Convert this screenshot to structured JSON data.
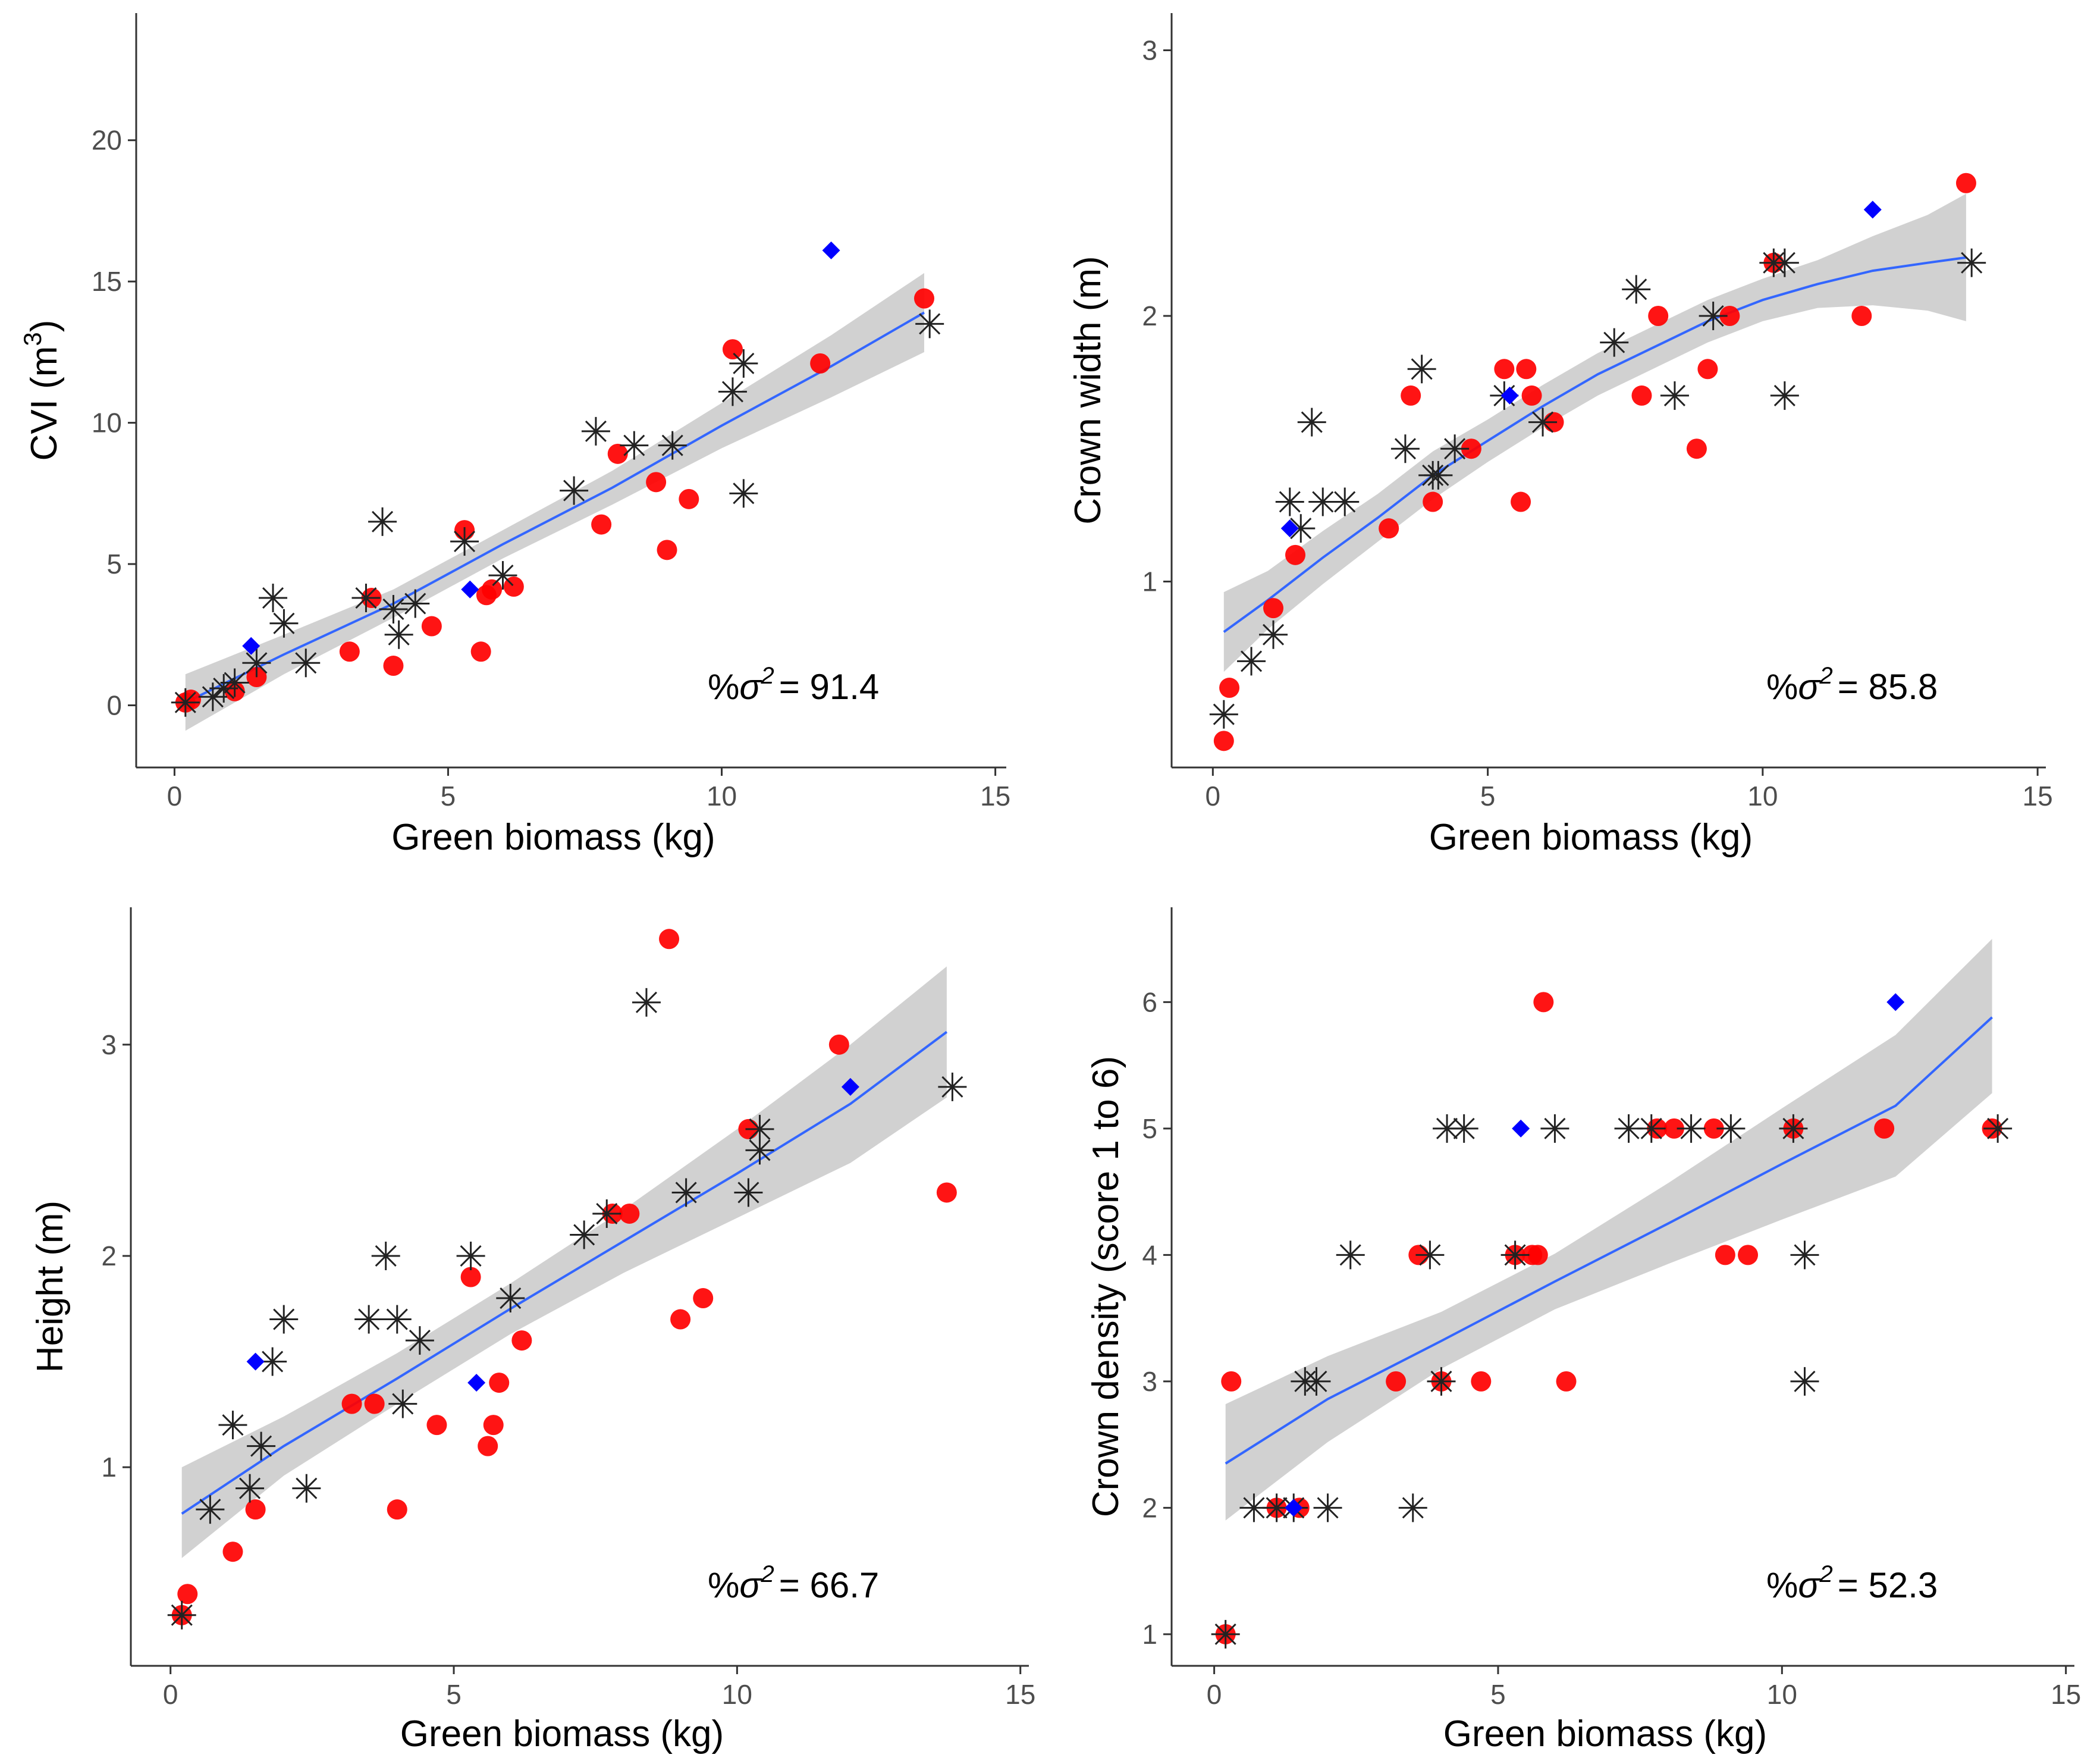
{
  "colors": {
    "circle": "#ff0000",
    "star": "#222222",
    "diamond": "#0000ff",
    "fit": "#3366ff",
    "band": "#bebebe"
  },
  "chart_data": [
    {
      "type": "scatter",
      "panel": "top-left",
      "xlabel": "Green biomass (kg)",
      "ylabel_text": "CVI (m",
      "ylabel_sup": "3",
      "ylabel_close": ")",
      "xlim": [
        -0.7,
        15.2
      ],
      "ylim": [
        -2.2,
        24.5
      ],
      "xticks": [
        0,
        5,
        10,
        15
      ],
      "yticks": [
        0,
        5,
        10,
        15,
        20
      ],
      "annotation": {
        "prefix": "%",
        "symbol": "σ",
        "sup": "2",
        "value": "= 91.4"
      },
      "fit": {
        "x": [
          0.2,
          2,
          4,
          6,
          8,
          10,
          12,
          13.7
        ],
        "y": [
          0.1,
          1.8,
          3.6,
          5.7,
          7.7,
          9.9,
          12.0,
          13.9
        ]
      },
      "band": {
        "x": [
          0.2,
          2,
          4,
          6,
          8,
          10,
          12,
          13.7
        ],
        "lower": [
          -0.9,
          1.1,
          3.1,
          5.2,
          7.1,
          9.1,
          10.9,
          12.5
        ],
        "upper": [
          1.1,
          2.5,
          4.1,
          6.2,
          8.3,
          10.7,
          13.1,
          15.3
        ]
      },
      "series": [
        {
          "name": "circle",
          "points": [
            [
              0.2,
              0.1
            ],
            [
              0.3,
              0.2
            ],
            [
              1.1,
              0.5
            ],
            [
              1.5,
              1.0
            ],
            [
              3.2,
              1.9
            ],
            [
              3.6,
              3.8
            ],
            [
              4.0,
              1.4
            ],
            [
              4.7,
              2.8
            ],
            [
              5.3,
              6.2
            ],
            [
              5.6,
              1.9
            ],
            [
              5.7,
              3.9
            ],
            [
              5.8,
              4.1
            ],
            [
              6.2,
              4.2
            ],
            [
              7.8,
              6.4
            ],
            [
              8.1,
              8.9
            ],
            [
              8.8,
              7.9
            ],
            [
              9.0,
              5.5
            ],
            [
              9.4,
              7.3
            ],
            [
              10.2,
              12.6
            ],
            [
              11.8,
              12.1
            ],
            [
              13.7,
              14.4
            ]
          ]
        },
        {
          "name": "star",
          "points": [
            [
              0.2,
              0.1
            ],
            [
              0.7,
              0.3
            ],
            [
              0.9,
              0.6
            ],
            [
              1.1,
              0.8
            ],
            [
              1.5,
              1.5
            ],
            [
              1.8,
              3.8
            ],
            [
              2.0,
              2.9
            ],
            [
              2.4,
              1.5
            ],
            [
              3.5,
              3.8
            ],
            [
              3.8,
              6.5
            ],
            [
              4.0,
              3.4
            ],
            [
              4.1,
              2.5
            ],
            [
              4.4,
              3.6
            ],
            [
              5.3,
              5.8
            ],
            [
              6.0,
              4.6
            ],
            [
              7.3,
              7.6
            ],
            [
              7.7,
              9.7
            ],
            [
              8.4,
              9.2
            ],
            [
              9.1,
              9.2
            ],
            [
              10.2,
              11.1
            ],
            [
              10.4,
              12.1
            ],
            [
              10.4,
              7.5
            ],
            [
              13.8,
              13.5
            ]
          ]
        },
        {
          "name": "diamond",
          "points": [
            [
              1.4,
              2.1
            ],
            [
              5.4,
              4.1
            ],
            [
              12.0,
              16.1
            ]
          ]
        }
      ]
    },
    {
      "type": "scatter",
      "panel": "top-right",
      "xlabel": "Green biomass (kg)",
      "ylabel": "Crown width (m)",
      "xlim": [
        -0.75,
        15.15
      ],
      "ylim": [
        0.3,
        3.14
      ],
      "xticks": [
        0,
        5,
        10,
        15
      ],
      "yticks": [
        1,
        2,
        3
      ],
      "annotation": {
        "prefix": "%",
        "symbol": "σ",
        "sup": "2",
        "value": "= 85.8"
      },
      "fit": {
        "x": [
          0.2,
          1,
          2,
          3,
          4,
          5,
          6,
          7,
          8,
          9,
          10,
          11,
          12,
          13,
          13.7
        ],
        "y": [
          0.81,
          0.93,
          1.09,
          1.24,
          1.4,
          1.53,
          1.66,
          1.78,
          1.88,
          1.98,
          2.06,
          2.12,
          2.17,
          2.2,
          2.22
        ]
      },
      "band": {
        "x": [
          0.2,
          1,
          2,
          3,
          4,
          5,
          6,
          7,
          8,
          9,
          10,
          11,
          12,
          13,
          13.7
        ],
        "lower": [
          0.66,
          0.82,
          0.99,
          1.15,
          1.31,
          1.45,
          1.58,
          1.7,
          1.8,
          1.9,
          1.98,
          2.03,
          2.04,
          2.02,
          1.98
        ],
        "upper": [
          0.96,
          1.04,
          1.19,
          1.33,
          1.49,
          1.61,
          1.74,
          1.86,
          1.96,
          2.06,
          2.14,
          2.21,
          2.3,
          2.38,
          2.46
        ]
      },
      "series": [
        {
          "name": "circle",
          "points": [
            [
              0.2,
              0.4
            ],
            [
              0.3,
              0.6
            ],
            [
              1.1,
              0.9
            ],
            [
              1.5,
              1.1
            ],
            [
              3.2,
              1.2
            ],
            [
              3.6,
              1.7
            ],
            [
              4.0,
              1.3
            ],
            [
              4.7,
              1.5
            ],
            [
              5.3,
              1.8
            ],
            [
              5.6,
              1.3
            ],
            [
              5.7,
              1.8
            ],
            [
              5.8,
              1.7
            ],
            [
              6.2,
              1.6
            ],
            [
              7.8,
              1.7
            ],
            [
              8.1,
              2.0
            ],
            [
              8.8,
              1.5
            ],
            [
              9.0,
              1.8
            ],
            [
              9.4,
              2.0
            ],
            [
              10.2,
              2.2
            ],
            [
              11.8,
              2.0
            ],
            [
              13.7,
              2.5
            ]
          ]
        },
        {
          "name": "star",
          "points": [
            [
              0.2,
              0.5
            ],
            [
              0.7,
              0.7
            ],
            [
              1.1,
              0.8
            ],
            [
              1.4,
              1.3
            ],
            [
              1.6,
              1.2
            ],
            [
              1.8,
              1.6
            ],
            [
              2.0,
              1.3
            ],
            [
              2.4,
              1.3
            ],
            [
              3.5,
              1.5
            ],
            [
              3.8,
              1.8
            ],
            [
              4.0,
              1.4
            ],
            [
              4.1,
              1.4
            ],
            [
              4.4,
              1.5
            ],
            [
              5.3,
              1.7
            ],
            [
              6.0,
              1.6
            ],
            [
              7.3,
              1.9
            ],
            [
              7.7,
              2.1
            ],
            [
              8.4,
              1.7
            ],
            [
              9.1,
              2.0
            ],
            [
              10.2,
              2.2
            ],
            [
              10.4,
              2.2
            ],
            [
              10.4,
              1.7
            ],
            [
              13.8,
              2.2
            ]
          ]
        },
        {
          "name": "diamond",
          "points": [
            [
              1.4,
              1.2
            ],
            [
              5.4,
              1.7
            ],
            [
              12.0,
              2.4
            ]
          ]
        }
      ]
    },
    {
      "type": "scatter",
      "panel": "bottom-left",
      "xlabel": "Green biomass (kg)",
      "ylabel": "Height (m)",
      "xlim": [
        -0.7,
        15.15
      ],
      "ylim": [
        0.06,
        3.65
      ],
      "xticks": [
        0,
        5,
        10,
        15
      ],
      "yticks": [
        1,
        2,
        3
      ],
      "annotation": {
        "prefix": "%",
        "symbol": "σ",
        "sup": "2",
        "value": "= 66.7"
      },
      "fit": {
        "x": [
          0.2,
          2,
          4,
          6,
          8,
          10,
          12,
          13.7
        ],
        "y": [
          0.78,
          1.1,
          1.42,
          1.75,
          2.07,
          2.39,
          2.72,
          3.06
        ]
      },
      "band": {
        "x": [
          0.2,
          2,
          4,
          6,
          8,
          10,
          12,
          13.7
        ],
        "lower": [
          0.57,
          0.96,
          1.3,
          1.63,
          1.92,
          2.18,
          2.44,
          2.75
        ],
        "upper": [
          1.0,
          1.24,
          1.54,
          1.87,
          2.22,
          2.6,
          3.0,
          3.37
        ]
      },
      "series": [
        {
          "name": "circle",
          "points": [
            [
              0.2,
              0.3
            ],
            [
              0.3,
              0.4
            ],
            [
              1.1,
              0.6
            ],
            [
              1.5,
              0.8
            ],
            [
              3.2,
              1.3
            ],
            [
              3.6,
              1.3
            ],
            [
              4.0,
              0.8
            ],
            [
              4.7,
              1.2
            ],
            [
              5.3,
              1.9
            ],
            [
              5.6,
              1.1
            ],
            [
              5.7,
              1.2
            ],
            [
              5.8,
              1.4
            ],
            [
              6.2,
              1.6
            ],
            [
              7.8,
              2.2
            ],
            [
              8.1,
              2.2
            ],
            [
              8.8,
              3.5
            ],
            [
              9.0,
              1.7
            ],
            [
              9.4,
              1.8
            ],
            [
              10.2,
              2.6
            ],
            [
              11.8,
              3.0
            ],
            [
              13.7,
              2.3
            ]
          ]
        },
        {
          "name": "star",
          "points": [
            [
              0.2,
              0.3
            ],
            [
              0.7,
              0.8
            ],
            [
              1.1,
              1.2
            ],
            [
              1.4,
              0.9
            ],
            [
              1.6,
              1.1
            ],
            [
              1.8,
              1.5
            ],
            [
              2.0,
              1.7
            ],
            [
              2.4,
              0.9
            ],
            [
              3.5,
              1.7
            ],
            [
              3.8,
              2.0
            ],
            [
              4.0,
              1.7
            ],
            [
              4.1,
              1.3
            ],
            [
              4.4,
              1.6
            ],
            [
              5.3,
              2.0
            ],
            [
              6.0,
              1.8
            ],
            [
              7.3,
              2.1
            ],
            [
              7.7,
              2.2
            ],
            [
              8.4,
              3.2
            ],
            [
              9.1,
              2.3
            ],
            [
              10.2,
              2.3
            ],
            [
              10.4,
              2.6
            ],
            [
              10.4,
              2.5
            ],
            [
              13.8,
              2.8
            ]
          ]
        },
        {
          "name": "diamond",
          "points": [
            [
              1.5,
              1.5
            ],
            [
              5.4,
              1.4
            ],
            [
              12.0,
              2.8
            ]
          ]
        }
      ]
    },
    {
      "type": "scatter",
      "panel": "bottom-right",
      "xlabel": "Green biomass (kg)",
      "ylabel": "Crown density (score 1 to 6)",
      "xlim": [
        -0.75,
        15.15
      ],
      "ylim": [
        0.75,
        6.75
      ],
      "xticks": [
        0,
        5,
        10,
        15
      ],
      "yticks": [
        1,
        2,
        3,
        4,
        5,
        6
      ],
      "annotation": {
        "prefix": "%",
        "symbol": "σ",
        "sup": "2",
        "value": "= 52.3"
      },
      "fit": {
        "x": [
          0.2,
          2,
          4,
          6,
          8,
          10,
          12,
          13.7
        ],
        "y": [
          2.35,
          2.86,
          3.32,
          3.79,
          4.25,
          4.72,
          5.18,
          5.88
        ]
      },
      "band": {
        "x": [
          0.2,
          2,
          4,
          6,
          8,
          10,
          12,
          13.7
        ],
        "lower": [
          1.9,
          2.52,
          3.1,
          3.57,
          3.93,
          4.28,
          4.62,
          5.28
        ],
        "upper": [
          2.82,
          3.2,
          3.55,
          4.01,
          4.57,
          5.16,
          5.74,
          6.5
        ]
      },
      "series": [
        {
          "name": "circle",
          "points": [
            [
              0.2,
              1
            ],
            [
              0.3,
              3
            ],
            [
              1.1,
              2
            ],
            [
              1.5,
              2
            ],
            [
              3.2,
              3
            ],
            [
              3.6,
              4
            ],
            [
              4.0,
              3
            ],
            [
              4.7,
              3
            ],
            [
              5.3,
              4
            ],
            [
              5.6,
              4
            ],
            [
              5.7,
              4
            ],
            [
              5.8,
              6
            ],
            [
              6.2,
              3
            ],
            [
              7.8,
              5
            ],
            [
              8.1,
              5
            ],
            [
              8.8,
              5
            ],
            [
              9.0,
              4
            ],
            [
              9.4,
              4
            ],
            [
              10.2,
              5
            ],
            [
              11.8,
              5
            ],
            [
              13.7,
              5
            ]
          ]
        },
        {
          "name": "star",
          "points": [
            [
              0.2,
              1
            ],
            [
              0.7,
              2
            ],
            [
              1.1,
              2
            ],
            [
              1.4,
              2
            ],
            [
              1.6,
              3
            ],
            [
              1.8,
              3
            ],
            [
              2.0,
              2
            ],
            [
              2.4,
              4
            ],
            [
              3.5,
              2
            ],
            [
              3.8,
              4
            ],
            [
              4.0,
              3
            ],
            [
              4.1,
              5
            ],
            [
              4.4,
              5
            ],
            [
              5.3,
              4
            ],
            [
              6.0,
              5
            ],
            [
              7.3,
              5
            ],
            [
              7.7,
              5
            ],
            [
              8.4,
              5
            ],
            [
              9.1,
              5
            ],
            [
              10.2,
              5
            ],
            [
              10.4,
              4
            ],
            [
              10.4,
              3
            ],
            [
              13.8,
              5
            ]
          ]
        },
        {
          "name": "diamond",
          "points": [
            [
              1.4,
              2
            ],
            [
              5.4,
              5
            ],
            [
              12.0,
              6
            ]
          ]
        }
      ]
    }
  ]
}
